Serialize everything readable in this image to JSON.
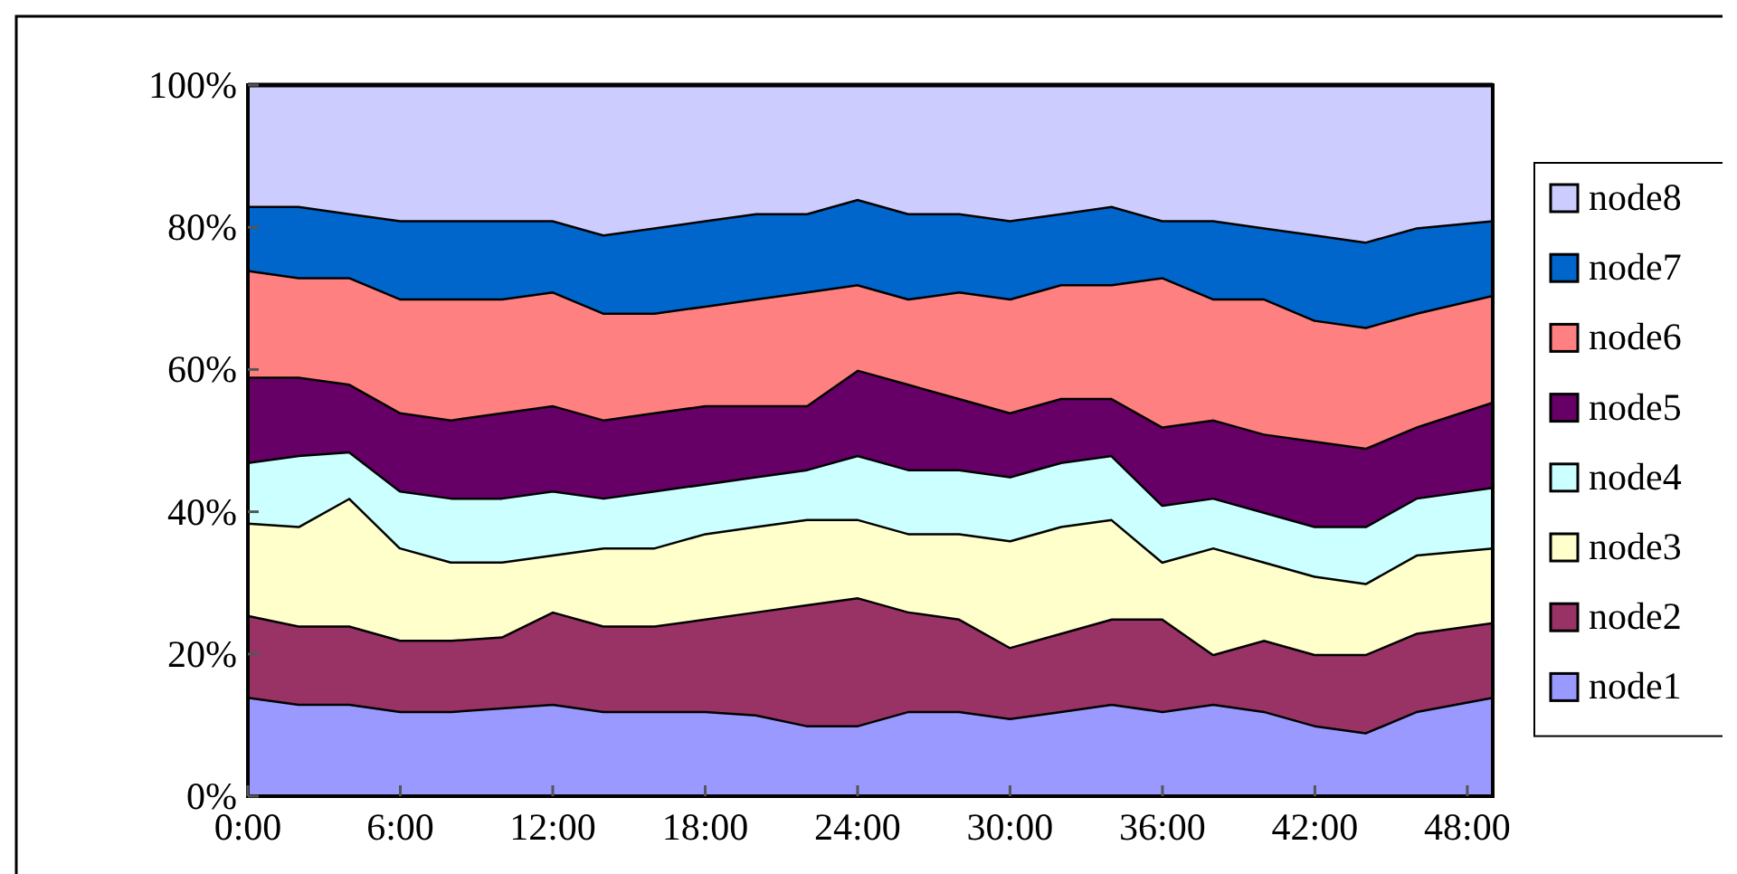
{
  "chart_data": {
    "type": "area",
    "stacked": true,
    "grid": false,
    "legend": "right",
    "x": [
      0,
      2,
      4,
      6,
      8,
      10,
      12,
      14,
      16,
      18,
      20,
      22,
      24,
      26,
      28,
      30,
      32,
      34,
      36,
      38,
      40,
      42,
      44,
      46,
      49
    ],
    "xlim": [
      0,
      49
    ],
    "xticks": [
      {
        "value": 0,
        "label": "0:00"
      },
      {
        "value": 6,
        "label": "6:00"
      },
      {
        "value": 12,
        "label": "12:00"
      },
      {
        "value": 18,
        "label": "18:00"
      },
      {
        "value": 24,
        "label": "24:00"
      },
      {
        "value": 30,
        "label": "30:00"
      },
      {
        "value": 36,
        "label": "36:00"
      },
      {
        "value": 42,
        "label": "42:00"
      },
      {
        "value": 48,
        "label": "48:00"
      }
    ],
    "ylim": [
      0,
      100
    ],
    "yticks": [
      {
        "value": 0,
        "label": "0%"
      },
      {
        "value": 20,
        "label": "20%"
      },
      {
        "value": 40,
        "label": "40%"
      },
      {
        "value": 60,
        "label": "60%"
      },
      {
        "value": 80,
        "label": "80%"
      },
      {
        "value": 100,
        "label": "100%"
      }
    ],
    "series": [
      {
        "name": "node1",
        "color": "#9999ff",
        "values": [
          14,
          13,
          13,
          12,
          12,
          12.5,
          13,
          12,
          12,
          12,
          11.5,
          10,
          10,
          12,
          12,
          11,
          12,
          13,
          12,
          13,
          12,
          10,
          9,
          12,
          14
        ]
      },
      {
        "name": "node2",
        "color": "#993366",
        "values": [
          11.5,
          11,
          11,
          10,
          10,
          10,
          13,
          12,
          12,
          13,
          14.5,
          17,
          18,
          14,
          13,
          10,
          11,
          12,
          13,
          7,
          10,
          10,
          11,
          11,
          10.5
        ]
      },
      {
        "name": "node3",
        "color": "#ffffcc",
        "values": [
          13,
          14,
          18,
          13,
          11,
          10.5,
          8,
          11,
          11,
          12,
          12,
          12,
          11,
          11,
          12,
          15,
          15,
          14,
          8,
          15,
          11,
          11,
          10,
          11,
          10.5
        ]
      },
      {
        "name": "node4",
        "color": "#ccffff",
        "values": [
          8.5,
          10,
          6.5,
          8,
          9,
          9,
          9,
          7,
          8,
          7,
          7,
          7,
          9,
          9,
          9,
          9,
          9,
          9,
          8,
          7,
          7,
          7,
          8,
          8,
          8.5
        ]
      },
      {
        "name": "node5",
        "color": "#660066",
        "values": [
          12,
          11,
          9.5,
          11,
          11,
          12,
          12,
          11,
          11,
          11,
          10,
          9,
          12,
          12,
          10,
          9,
          9,
          8,
          11,
          11,
          11,
          12,
          11,
          10,
          12
        ]
      },
      {
        "name": "node6",
        "color": "#ff8080",
        "values": [
          15,
          14,
          15,
          16,
          17,
          16,
          16,
          15,
          14,
          14,
          15,
          16,
          12,
          12,
          15,
          16,
          16,
          16,
          21,
          17,
          19,
          17,
          17,
          16,
          15
        ]
      },
      {
        "name": "node7",
        "color": "#0066cc",
        "values": [
          9,
          10,
          9,
          11,
          11,
          11,
          10,
          11,
          12,
          12,
          12,
          11,
          12,
          12,
          11,
          11,
          10,
          11,
          8,
          11,
          10,
          12,
          12,
          12,
          10.5
        ]
      },
      {
        "name": "node8",
        "color": "#ccccff",
        "values": [
          17,
          17,
          18,
          19,
          19,
          19,
          19,
          21,
          20,
          19,
          18,
          18,
          16,
          18,
          18,
          19,
          18,
          17,
          19,
          19,
          20,
          21,
          22,
          20,
          19
        ]
      }
    ]
  }
}
